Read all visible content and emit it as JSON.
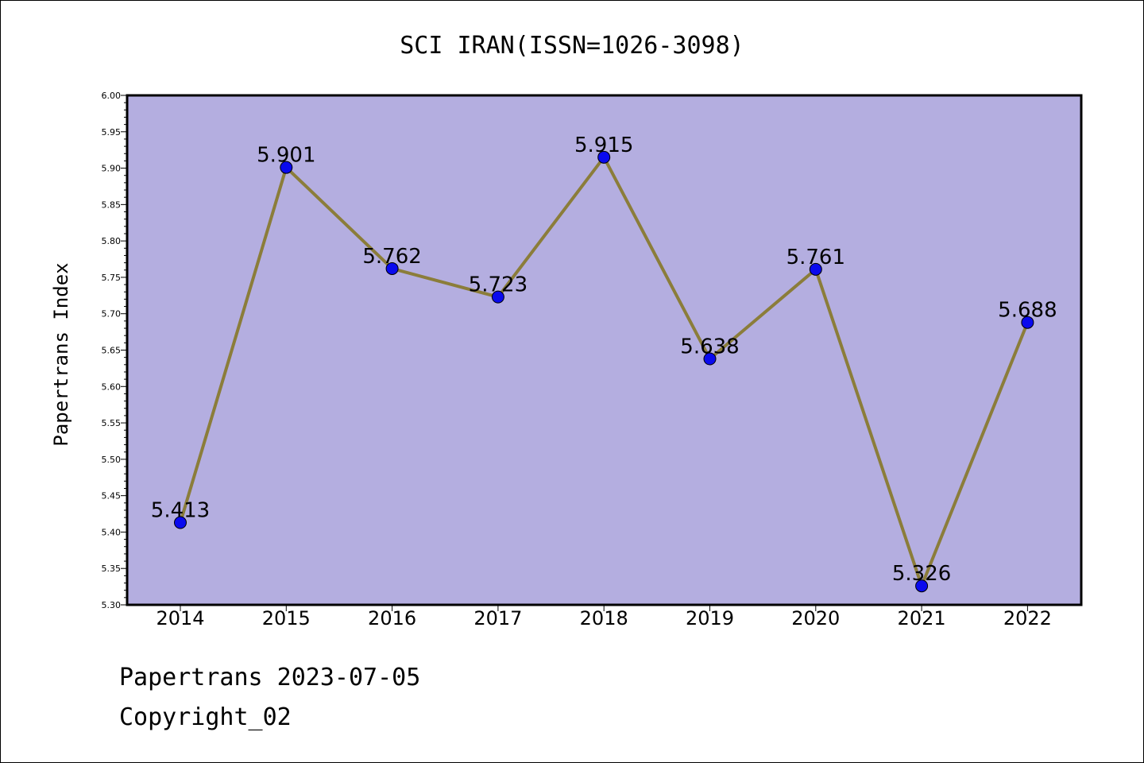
{
  "chart_data": {
    "type": "line",
    "title": "SCI IRAN(ISSN=1026-3098)",
    "xlabel": "",
    "ylabel": "Papertrans Index",
    "categories": [
      "2014",
      "2015",
      "2016",
      "2017",
      "2018",
      "2019",
      "2020",
      "2021",
      "2022"
    ],
    "series": [
      {
        "values": [
          5.413,
          5.901,
          5.762,
          5.723,
          5.915,
          5.638,
          5.761,
          5.326,
          5.688
        ],
        "data_labels": [
          "5.413",
          "5.901",
          "5.762",
          "5.723",
          "5.915",
          "5.638",
          "5.761",
          "5.326",
          "5.688"
        ]
      }
    ],
    "ylim": [
      5.3,
      6.0
    ],
    "yticks": [
      "5.30",
      "5.35",
      "5.40",
      "5.45",
      "5.50",
      "5.55",
      "5.60",
      "5.65",
      "5.70",
      "5.75",
      "5.80",
      "5.85",
      "5.90",
      "5.95",
      "6.00"
    ],
    "grid": false,
    "legend": "none",
    "colors": {
      "plot_background": "#b4aee0",
      "line": "#8b7d3a",
      "marker": "#0a0aee"
    }
  },
  "footer": {
    "date_line": "Papertrans 2023-07-05",
    "copyright_line": "Copyright_02"
  }
}
